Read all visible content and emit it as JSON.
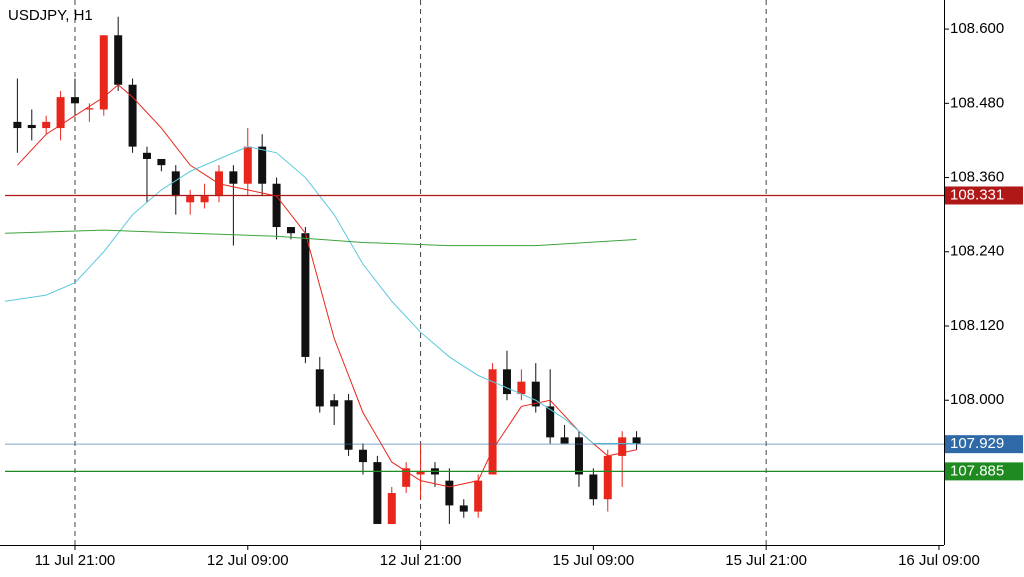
{
  "chart_data": {
    "type": "candlestick",
    "title": "USDJPY, H1",
    "up_color": "#e8261c",
    "down_color": "#111111",
    "xlim": [
      -0.86,
      64.35
    ],
    "ylim": [
      107.766,
      108.647
    ],
    "xticks": [
      {
        "value": 4,
        "label": "11 Jul 21:00"
      },
      {
        "value": 16,
        "label": "12 Jul 09:00"
      },
      {
        "value": 28,
        "label": "12 Jul 21:00"
      },
      {
        "value": 40,
        "label": "15 Jul 09:00"
      },
      {
        "value": 52,
        "label": "15 Jul 21:00"
      },
      {
        "value": 64,
        "label": "16 Jul 09:00"
      }
    ],
    "yticks": [
      {
        "value": 108.6,
        "label": "108.600"
      },
      {
        "value": 108.48,
        "label": "108.480"
      },
      {
        "value": 108.36,
        "label": "108.360"
      },
      {
        "value": 108.24,
        "label": "108.240"
      },
      {
        "value": 108.12,
        "label": "108.120"
      },
      {
        "value": 108.0,
        "label": "108.000"
      }
    ],
    "candles": {
      "open": [
        108.45,
        108.445,
        108.44,
        108.44,
        108.49,
        108.47,
        108.47,
        108.59,
        108.51,
        108.4,
        108.39,
        108.37,
        108.32,
        108.32,
        108.33,
        108.37,
        108.35,
        108.41,
        108.35,
        108.28,
        108.27,
        108.05,
        108.0,
        108.0,
        107.92,
        107.9,
        107.8,
        107.86,
        107.88,
        107.89,
        107.87,
        107.83,
        107.82,
        107.88,
        108.05,
        108.01,
        108.03,
        107.99,
        107.94,
        107.94,
        107.88,
        107.84,
        107.91,
        107.94
      ],
      "high": [
        108.52,
        108.47,
        108.46,
        108.5,
        108.52,
        108.48,
        108.59,
        108.62,
        108.52,
        108.41,
        108.39,
        108.38,
        108.34,
        108.35,
        108.38,
        108.38,
        108.44,
        108.43,
        108.36,
        108.28,
        108.28,
        108.07,
        108.01,
        108.01,
        107.93,
        107.91,
        107.86,
        107.9,
        107.93,
        107.9,
        107.89,
        107.84,
        107.88,
        108.06,
        108.08,
        108.05,
        108.06,
        108.05,
        107.96,
        107.95,
        107.89,
        107.92,
        107.95,
        107.95
      ],
      "low": [
        108.4,
        108.42,
        108.43,
        108.42,
        108.46,
        108.45,
        108.46,
        108.5,
        108.4,
        108.32,
        108.37,
        108.3,
        108.3,
        108.31,
        108.32,
        108.25,
        108.33,
        108.33,
        108.26,
        108.26,
        108.06,
        107.98,
        107.96,
        107.91,
        107.88,
        107.8,
        107.8,
        107.85,
        107.84,
        107.86,
        107.8,
        107.81,
        107.81,
        107.88,
        108.0,
        108.0,
        107.98,
        107.93,
        107.93,
        107.86,
        107.83,
        107.82,
        107.86,
        107.92
      ],
      "close": [
        108.44,
        108.44,
        108.45,
        108.49,
        108.48,
        108.472,
        108.59,
        108.51,
        108.41,
        108.39,
        108.38,
        108.33,
        108.33,
        108.33,
        108.37,
        108.35,
        108.41,
        108.35,
        108.28,
        108.27,
        108.07,
        107.99,
        107.99,
        107.92,
        107.9,
        107.8,
        107.85,
        107.89,
        107.885,
        107.88,
        107.83,
        107.82,
        107.87,
        108.05,
        108.01,
        108.03,
        107.99,
        107.94,
        107.93,
        107.88,
        107.84,
        107.91,
        107.94,
        107.93
      ]
    },
    "overlays": [
      {
        "color": "#e8261c",
        "x": [
          0,
          2,
          4,
          6,
          7,
          8,
          10,
          12,
          14,
          16,
          18,
          20,
          22,
          24,
          26,
          28,
          30,
          32,
          33,
          35,
          37,
          39,
          41,
          43
        ],
        "values": [
          108.38,
          108.43,
          108.46,
          108.49,
          108.51,
          108.49,
          108.44,
          108.38,
          108.35,
          108.34,
          108.33,
          108.27,
          108.1,
          107.98,
          107.9,
          107.87,
          107.86,
          107.87,
          107.92,
          107.99,
          108.0,
          107.95,
          107.91,
          107.92
        ]
      },
      {
        "color": "#5bc8dc",
        "x": [
          -0.86,
          2,
          4,
          6,
          8,
          10,
          12,
          14,
          16,
          18,
          20,
          22,
          24,
          26,
          28,
          30,
          32,
          34,
          36,
          38,
          40,
          42,
          43
        ],
        "values": [
          108.16,
          108.17,
          108.19,
          108.24,
          108.3,
          108.34,
          108.37,
          108.39,
          108.41,
          108.4,
          108.36,
          108.3,
          108.22,
          108.16,
          108.11,
          108.07,
          108.04,
          108.02,
          108.0,
          107.97,
          107.93,
          107.93,
          107.93
        ]
      },
      {
        "color": "#3ca43c",
        "x": [
          -0.86,
          6,
          12,
          18,
          24,
          30,
          36,
          43
        ],
        "values": [
          108.27,
          108.275,
          108.27,
          108.265,
          108.255,
          108.25,
          108.25,
          108.26
        ]
      }
    ],
    "price_lines": [
      {
        "value": 108.331,
        "label": "108.331",
        "color": "#b01818"
      },
      {
        "value": 107.929,
        "label": "107.929",
        "color": "#2f6aa8"
      },
      {
        "value": 107.885,
        "label": "107.885",
        "color": "#1f8a1f"
      }
    ]
  }
}
